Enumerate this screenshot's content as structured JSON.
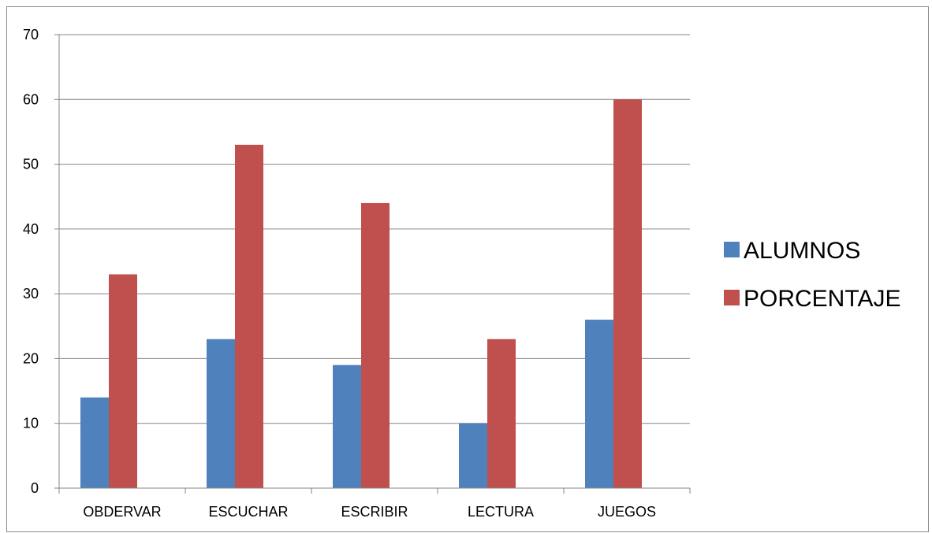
{
  "chart_data": {
    "type": "bar",
    "categories": [
      "OBDERVAR",
      "ESCUCHAR",
      "ESCRIBIR",
      "LECTURA",
      "JUEGOS"
    ],
    "series": [
      {
        "name": "ALUMNOS",
        "values": [
          14,
          23,
          19,
          10,
          26
        ],
        "color": "#4F81BD"
      },
      {
        "name": "PORCENTAJE",
        "values": [
          33,
          53,
          44,
          23,
          60
        ],
        "color": "#C0504D"
      }
    ],
    "title": "",
    "xlabel": "",
    "ylabel": "",
    "ylim": [
      0,
      70
    ],
    "yticks": [
      0,
      10,
      20,
      30,
      40,
      50,
      60,
      70
    ],
    "grid": true,
    "legend_position": "right"
  }
}
